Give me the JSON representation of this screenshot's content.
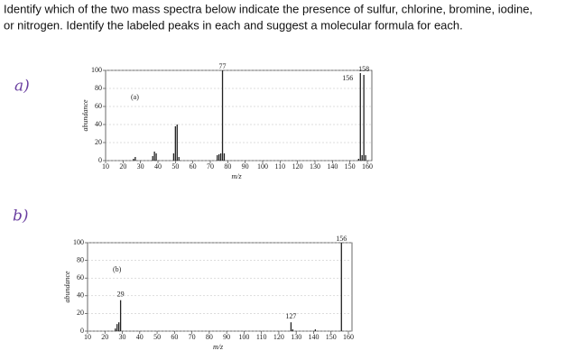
{
  "question": [
    "Identify which of the two mass spectra below indicate the presence of sulfur, chlorine, bromine, iodine,",
    "or nitrogen. Identify the labeled peaks in each and suggest a molecular formula for each."
  ],
  "parts": [
    "a)",
    "b)"
  ],
  "chart_data": [
    {
      "type": "stem",
      "panel_label": "(a)",
      "x_label": "m/z",
      "y_label": "abundance",
      "x": [
        26,
        27,
        37,
        38,
        39,
        49,
        50,
        51,
        52,
        74,
        75,
        76,
        77,
        78,
        155,
        156,
        157,
        158,
        159
      ],
      "values": [
        2,
        4,
        5,
        10,
        8,
        8,
        38,
        40,
        4,
        6,
        7,
        8,
        100,
        8,
        2,
        97,
        6,
        95,
        6
      ],
      "annotations": [
        {
          "label": "77",
          "x": 77
        },
        {
          "label": "156",
          "x": 156
        },
        {
          "label": "158",
          "x": 158
        }
      ],
      "color": "#222222",
      "grid": true,
      "xlim": [
        10,
        160
      ],
      "xticks": [
        10,
        20,
        30,
        40,
        50,
        60,
        70,
        80,
        90,
        100,
        110,
        120,
        130,
        140,
        150,
        160
      ],
      "ylim": [
        0,
        100
      ],
      "yticks": [
        0,
        20,
        40,
        60,
        80,
        100
      ]
    },
    {
      "type": "stem",
      "panel_label": "(b)",
      "x_label": "m/z",
      "y_label": "abundance",
      "x": [
        26,
        27,
        28,
        29,
        127,
        128,
        141,
        156
      ],
      "values": [
        3,
        8,
        10,
        35,
        10,
        2,
        2,
        100
      ],
      "annotations": [
        {
          "label": "29",
          "x": 29
        },
        {
          "label": "127",
          "x": 127
        },
        {
          "label": "156",
          "x": 156
        }
      ],
      "color": "#222222",
      "grid": true,
      "xlim": [
        10,
        160
      ],
      "xticks": [
        10,
        20,
        30,
        40,
        50,
        60,
        70,
        80,
        90,
        100,
        110,
        120,
        130,
        140,
        150,
        160
      ],
      "ylim": [
        0,
        100
      ],
      "yticks": [
        0,
        20,
        40,
        60,
        80,
        100
      ]
    }
  ]
}
